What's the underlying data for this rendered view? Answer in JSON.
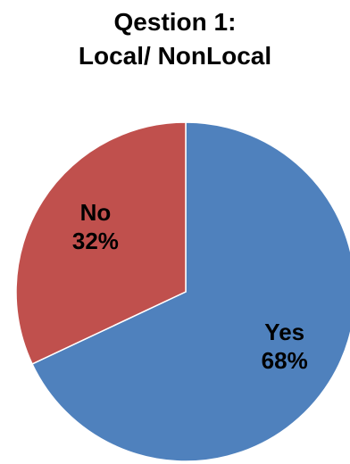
{
  "chart_data": {
    "type": "pie",
    "title": [
      "Qestion 1:",
      "Local/ NonLocal"
    ],
    "slices": [
      {
        "label": "Yes",
        "value": 68,
        "display": "68%",
        "color": "#4f81bd"
      },
      {
        "label": "No",
        "value": 32,
        "display": "32%",
        "color": "#c0504d"
      }
    ],
    "start_angle_deg": 0,
    "direction": "clockwise",
    "legend": "none",
    "slice_edge_color": "#ffffff"
  }
}
